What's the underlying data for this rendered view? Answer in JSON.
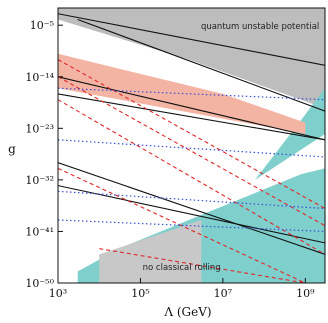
{
  "chart_data": {
    "type": "area",
    "xlabel": "Λ (GeV)",
    "ylabel": "g",
    "xscale": "log",
    "yscale": "log",
    "xlim": [
      1000,
      3000000000
    ],
    "ylim": [
      1e-50,
      0.01
    ],
    "x_ticks": [
      {
        "value": 1000,
        "label": "10³"
      },
      {
        "value": 100000,
        "label": "10⁵"
      },
      {
        "value": 10000000,
        "label": "10⁷"
      },
      {
        "value": 1000000000,
        "label": "10⁹"
      }
    ],
    "y_ticks": [
      {
        "value": 1e-05,
        "label": "10⁻⁵"
      },
      {
        "value": 1e-14,
        "label": "10⁻¹⁴"
      },
      {
        "value": 1e-23,
        "label": "10⁻²³"
      },
      {
        "value": 1e-32,
        "label": "10⁻³²"
      },
      {
        "value": 1e-41,
        "label": "10⁻⁴¹"
      },
      {
        "value": 1e-50,
        "label": "10⁻⁵⁰"
      }
    ],
    "regions": [
      {
        "name": "quantum unstable potential",
        "color": "#bdbdbd",
        "label": "quantum unstable potential",
        "polygon": [
          [
            1000,
            0.01
          ],
          [
            3000000000,
            0.01
          ],
          [
            3000000000,
            3e-20
          ],
          [
            1500000,
            1e-11
          ],
          [
            1000,
            0.0001
          ]
        ]
      },
      {
        "name": "teal upper",
        "color": "#7fd0cc",
        "label": "",
        "polygon": [
          [
            3000000000,
            1e-24
          ],
          [
            3000000000,
            1e-16
          ],
          [
            800000000,
            3e-22
          ],
          [
            60000000,
            1e-32
          ]
        ]
      },
      {
        "name": "teal lower",
        "color": "#7fd0cc",
        "label": "no classical rolling",
        "polygon": [
          [
            3000,
            1e-50
          ],
          [
            3000000000,
            1e-50
          ],
          [
            3000000000,
            1e-30
          ],
          [
            800000000,
            1e-31
          ],
          [
            30000,
            1e-44
          ],
          [
            3000,
            1e-48
          ]
        ]
      },
      {
        "name": "gray lower",
        "color": "#c8c8c8",
        "label": "",
        "polygon": [
          [
            10000,
            1e-50
          ],
          [
            3000000,
            1e-50
          ],
          [
            3000000,
            1e-39
          ],
          [
            10000,
            1e-45
          ]
        ]
      },
      {
        "name": "salmon band",
        "color": "#f4b4a4",
        "label": "",
        "polygon": [
          [
            1000,
            1e-10
          ],
          [
            1000,
            1e-16
          ],
          [
            1000000000,
            1e-24
          ],
          [
            1000000000,
            1e-22
          ],
          [
            10000000,
            1e-17
          ]
        ]
      }
    ],
    "black_lines": [
      [
        [
          1000,
          0.001
        ],
        [
          3000000000,
          1e-12
        ]
      ],
      [
        [
          3000,
          0.0001
        ],
        [
          3000000000,
          1e-20
        ]
      ],
      [
        [
          1000,
          1e-14
        ],
        [
          3000000000,
          1e-25
        ]
      ],
      [
        [
          1000,
          1e-17
        ],
        [
          3000000000,
          1e-25
        ]
      ],
      [
        [
          1000,
          1e-29
        ],
        [
          3000000000,
          1e-45
        ]
      ],
      [
        [
          1000,
          1e-33
        ],
        [
          3000000000,
          1e-43
        ]
      ]
    ],
    "red_dashed_lines": [
      [
        [
          1000,
          1e-11
        ],
        [
          3000000000,
          1e-37
        ]
      ],
      [
        [
          1000,
          1e-14
        ],
        [
          3000000000,
          1e-40
        ]
      ],
      [
        [
          1000,
          1e-18
        ],
        [
          3000000000,
          1e-45
        ]
      ],
      [
        [
          1000,
          1e-30
        ],
        [
          1000000000,
          1e-50
        ]
      ],
      [
        [
          10000,
          1e-44
        ],
        [
          1000000000,
          1e-50
        ]
      ]
    ],
    "blue_dotted_lines": [
      [
        [
          1000,
          1e-16
        ],
        [
          3000000000,
          1e-18
        ]
      ],
      [
        [
          1000,
          1e-25
        ],
        [
          3000000000,
          1e-28
        ]
      ],
      [
        [
          1000,
          1e-34
        ],
        [
          3000000000,
          1e-37
        ]
      ],
      [
        [
          1000,
          1e-39
        ],
        [
          3000000000,
          1e-41
        ]
      ]
    ],
    "annotations": [
      {
        "text": "quantum unstable potential",
        "x": 80000000,
        "y": 2e-06
      },
      {
        "text": "no classical rolling",
        "x": 1000000,
        "y": 2e-48
      }
    ]
  }
}
